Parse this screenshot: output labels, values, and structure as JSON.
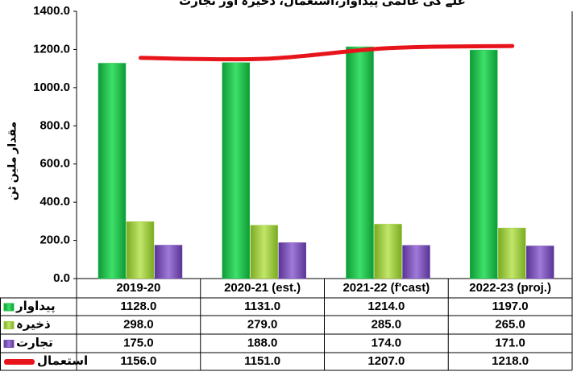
{
  "chart_data": {
    "type": "bar",
    "title": "غلے کی عالمی پیداوار،استعمال، ذخیرہ اور تجارت",
    "y_label": "مقدار ملین ٹن",
    "categories": [
      "2019-20",
      "2020-21 (est.)",
      "2021-22 (f'cast)",
      "2022-23 (proj.)"
    ],
    "series": [
      {
        "name": "پیداوار",
        "type": "bar",
        "color": "#1fbf4a",
        "values": [
          1128,
          1131,
          1214,
          1197
        ],
        "value_labels": [
          "1128.0",
          "1131.0",
          "1214.0",
          "1197.0"
        ]
      },
      {
        "name": "ذخیرہ",
        "type": "bar",
        "color": "#9ccc3c",
        "values": [
          298,
          279,
          285,
          265
        ],
        "value_labels": [
          "298.0",
          "279.0",
          "285.0",
          "265.0"
        ]
      },
      {
        "name": "تجارت",
        "type": "bar",
        "color": "#7a4fb8",
        "values": [
          175,
          188,
          174,
          171
        ],
        "value_labels": [
          "175.0",
          "188.0",
          "174.0",
          "171.0"
        ]
      },
      {
        "name": "استعمال",
        "type": "line",
        "color": "#e8141b",
        "values": [
          1156,
          1151,
          1207,
          1218
        ],
        "value_labels": [
          "1156.0",
          "1151.0",
          "1207.0",
          "1218.0"
        ]
      }
    ],
    "ylim": [
      0,
      1400
    ],
    "yticks": [
      {
        "value": 0,
        "label": "0.0"
      },
      {
        "value": 200,
        "label": "200.0"
      },
      {
        "value": 400,
        "label": "400.0"
      },
      {
        "value": 600,
        "label": "600.0"
      },
      {
        "value": 800,
        "label": "800.0"
      },
      {
        "value": 1000,
        "label": "1000.0"
      },
      {
        "value": 1200,
        "label": "1200.0"
      },
      {
        "value": 1400,
        "label": "1400.0"
      }
    ],
    "grid": false
  }
}
